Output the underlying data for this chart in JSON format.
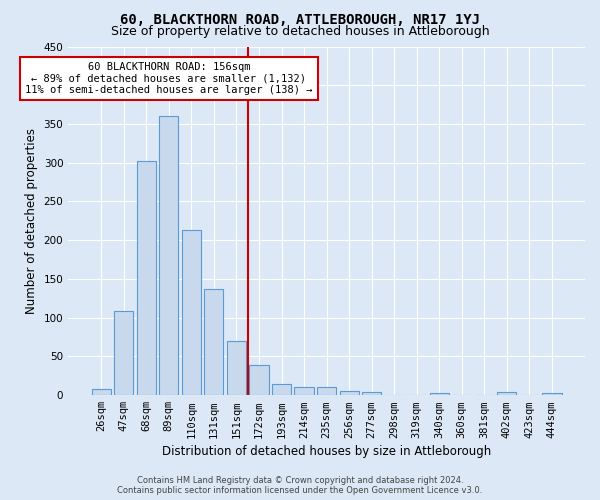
{
  "title": "60, BLACKTHORN ROAD, ATTLEBOROUGH, NR17 1YJ",
  "subtitle": "Size of property relative to detached houses in Attleborough",
  "xlabel": "Distribution of detached houses by size in Attleborough",
  "ylabel": "Number of detached properties",
  "footer_line1": "Contains HM Land Registry data © Crown copyright and database right 2024.",
  "footer_line2": "Contains public sector information licensed under the Open Government Licence v3.0.",
  "categories": [
    "26sqm",
    "47sqm",
    "68sqm",
    "89sqm",
    "110sqm",
    "131sqm",
    "151sqm",
    "172sqm",
    "193sqm",
    "214sqm",
    "235sqm",
    "256sqm",
    "277sqm",
    "298sqm",
    "319sqm",
    "340sqm",
    "360sqm",
    "381sqm",
    "402sqm",
    "423sqm",
    "444sqm"
  ],
  "values": [
    8,
    109,
    302,
    360,
    213,
    137,
    70,
    39,
    14,
    11,
    10,
    6,
    4,
    0,
    0,
    3,
    0,
    0,
    4,
    0,
    3
  ],
  "bar_color": "#c9d9ed",
  "bar_edge_color": "#5b9bd5",
  "reference_line_x": 6.5,
  "reference_line_color": "#cc0000",
  "annotation_line1": "60 BLACKTHORN ROAD: 156sqm",
  "annotation_line2": "← 89% of detached houses are smaller (1,132)",
  "annotation_line3": "11% of semi-detached houses are larger (138) →",
  "annotation_box_edge_color": "#cc0000",
  "annotation_fontsize": 7.5,
  "ylim": [
    0,
    450
  ],
  "yticks": [
    0,
    50,
    100,
    150,
    200,
    250,
    300,
    350,
    400,
    450
  ],
  "background_color": "#dce8f5",
  "plot_background_color": "#dce8f5",
  "grid_color": "#ffffff",
  "title_fontsize": 10,
  "subtitle_fontsize": 9,
  "xlabel_fontsize": 8.5,
  "ylabel_fontsize": 8.5,
  "tick_fontsize": 7.5
}
